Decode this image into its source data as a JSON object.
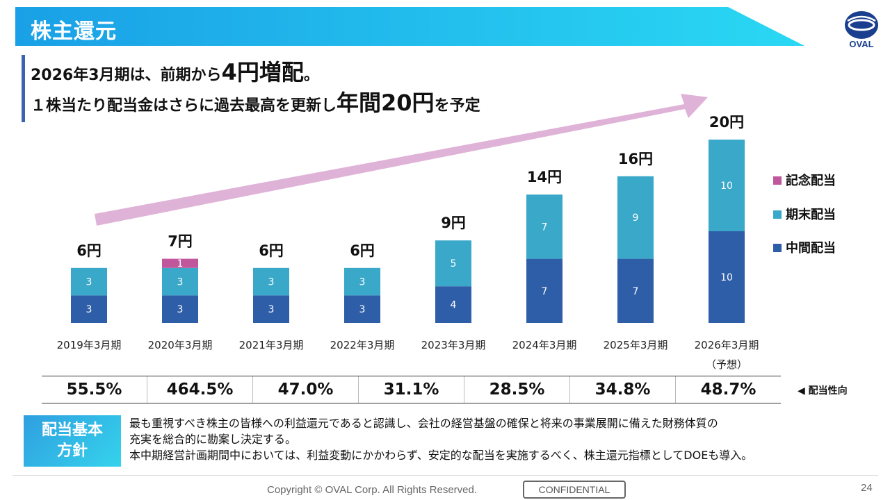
{
  "page": {
    "title": "株主還元",
    "logo_text": "OVAL",
    "page_number": "24",
    "copyright": "Copyright © OVAL Corp. All Rights Reserved.",
    "confidential": "CONFIDENTIAL"
  },
  "headline": {
    "line1_a": "2026年3月期は、前期から",
    "line1_b": "4円増配",
    "line1_c": "。",
    "line2_a": "１株当たり配当金はさらに過去最高を更新し",
    "line2_b": "年間20円",
    "line2_c": "を予定"
  },
  "chart_data": {
    "type": "bar",
    "stacked": true,
    "categories": [
      "2019年3月期",
      "2020年3月期",
      "2021年3月期",
      "2022年3月期",
      "2023年3月期",
      "2024年3月期",
      "2025年3月期",
      "2026年3月期"
    ],
    "category_notes": [
      "",
      "",
      "",
      "",
      "",
      "",
      "",
      "（予想）"
    ],
    "series": [
      {
        "name": "中間配当",
        "color": "#2f5ea8",
        "values": [
          3,
          3,
          3,
          3,
          4,
          7,
          7,
          10
        ]
      },
      {
        "name": "期末配当",
        "color": "#3aa8c9",
        "values": [
          3,
          3,
          3,
          3,
          5,
          7,
          9,
          10
        ]
      },
      {
        "name": "記念配当",
        "color": "#c0579d",
        "values": [
          0,
          1,
          0,
          0,
          0,
          0,
          0,
          0
        ]
      }
    ],
    "totals": [
      "6円",
      "7円",
      "6円",
      "6円",
      "9円",
      "14円",
      "16円",
      "20円"
    ],
    "legend_order": [
      "記念配当",
      "期末配当",
      "中間配当"
    ],
    "legend_position": "right",
    "grid": false,
    "ylim": [
      0,
      20
    ]
  },
  "payout": {
    "label": "◀ 配当性向",
    "values": [
      "55.5%",
      "464.5%",
      "47.0%",
      "31.1%",
      "28.5%",
      "34.8%",
      "48.7%"
    ]
  },
  "policy": {
    "box_line1": "配当基本",
    "box_line2": "方針",
    "text_line1": "最も重視すべき株主の皆様への利益還元であると認識し、会社の経営基盤の確保と将来の事業展開に備えた財務体質の",
    "text_line2": "充実を総合的に勘案し決定する。",
    "text_line3": "本中期経営計画期間中においては、利益変動にかかわらず、安定的な配当を実施するべく、株主還元指標としてDOEも導入。"
  },
  "colors": {
    "header_start": "#1aa0e6",
    "header_end": "#29d6f2",
    "arrow": "#dfb3d8",
    "accent": "#3a63b0"
  }
}
